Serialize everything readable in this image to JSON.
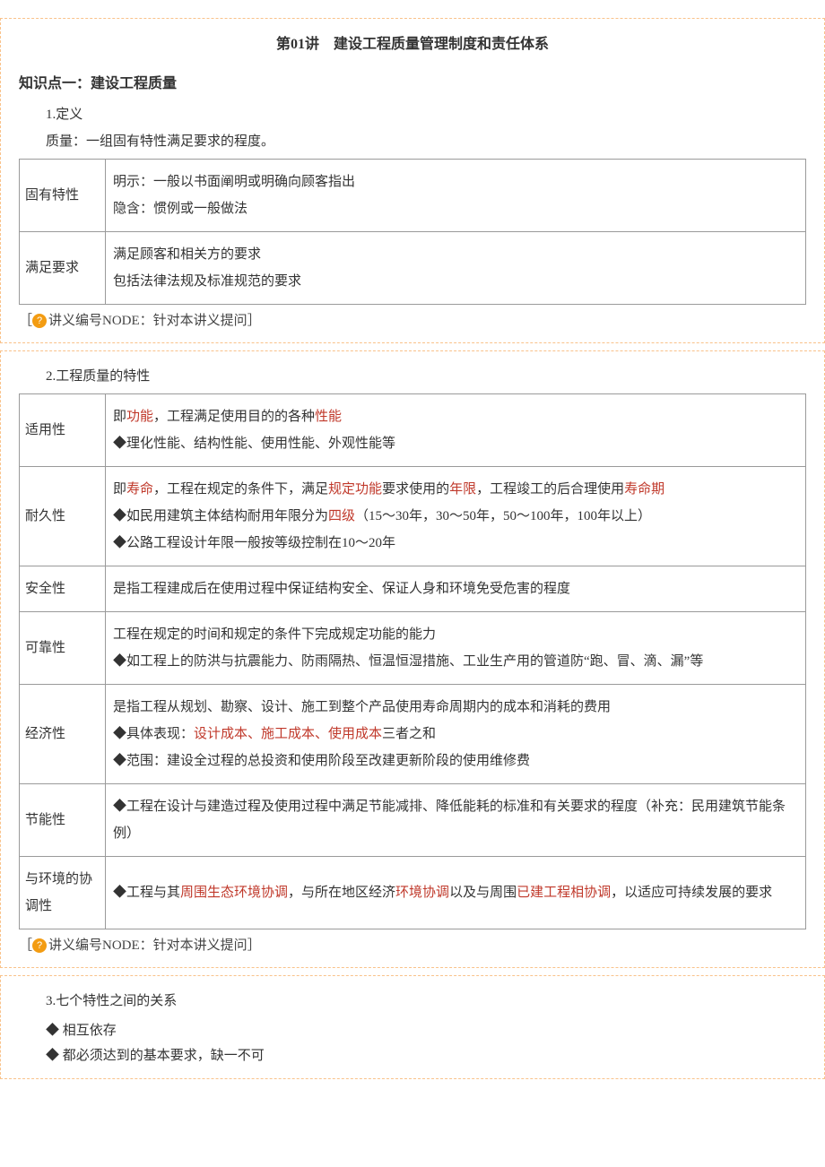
{
  "title": "第01讲　建设工程质量管理制度和责任体系",
  "sections": [
    {
      "kp_heading": "知识点一：建设工程质量",
      "sub_heading": "1.定义",
      "intro": "质量：一组固有特性满足要求的程度。",
      "table_rows": [
        {
          "key": "固有特性",
          "lines": [
            {
              "parts": [
                {
                  "t": "明示：一般以书面阐明或明确向顾客指出"
                }
              ]
            },
            {
              "parts": [
                {
                  "t": "隐含：惯例或一般做法"
                }
              ]
            }
          ]
        },
        {
          "key": "满足要求",
          "lines": [
            {
              "parts": [
                {
                  "t": "满足顾客和相关方的要求"
                }
              ]
            },
            {
              "parts": [
                {
                  "t": "包括法律法规及标准规范的要求"
                }
              ]
            }
          ]
        }
      ],
      "note": "讲义编号NODE：针对本讲义提问"
    },
    {
      "sub_heading": "2.工程质量的特性",
      "table_rows": [
        {
          "key": "适用性",
          "lines": [
            {
              "parts": [
                {
                  "t": "即"
                },
                {
                  "t": "功能",
                  "hl": true
                },
                {
                  "t": "，工程满足使用目的的各种"
                },
                {
                  "t": "性能",
                  "hl": true
                }
              ]
            },
            {
              "parts": [
                {
                  "t": "◆理化性能、结构性能、使用性能、外观性能等"
                }
              ]
            }
          ]
        },
        {
          "key": "耐久性",
          "lines": [
            {
              "parts": [
                {
                  "t": "即"
                },
                {
                  "t": "寿命",
                  "hl": true
                },
                {
                  "t": "，工程在规定的条件下，满足"
                },
                {
                  "t": "规定功能",
                  "hl": true
                },
                {
                  "t": "要求使用的"
                },
                {
                  "t": "年限",
                  "hl": true
                },
                {
                  "t": "，工程竣工的后合理使用"
                },
                {
                  "t": "寿命期",
                  "hl": true
                }
              ]
            },
            {
              "parts": [
                {
                  "t": "◆如民用建筑主体结构耐用年限分为"
                },
                {
                  "t": "四级",
                  "hl": true
                },
                {
                  "t": "（15～30年，30～50年，50～100年，100年以上）"
                }
              ]
            },
            {
              "parts": [
                {
                  "t": "◆公路工程设计年限一般按等级控制在10～20年"
                }
              ]
            }
          ]
        },
        {
          "key": "安全性",
          "lines": [
            {
              "parts": [
                {
                  "t": "是指工程建成后在使用过程中保证结构安全、保证人身和环境免受危害的程度"
                }
              ]
            }
          ]
        },
        {
          "key": "可靠性",
          "lines": [
            {
              "parts": [
                {
                  "t": "工程在规定的时间和规定的条件下完成规定功能的能力"
                }
              ]
            },
            {
              "parts": [
                {
                  "t": "◆如工程上的防洪与抗震能力、防雨隔热、恒温恒湿措施、工业生产用的管道防“跑、冒、滴、漏”等"
                }
              ]
            }
          ]
        },
        {
          "key": "经济性",
          "lines": [
            {
              "parts": [
                {
                  "t": "是指工程从规划、勘察、设计、施工到整个产品使用寿命周期内的成本和消耗的费用"
                }
              ]
            },
            {
              "parts": [
                {
                  "t": "◆具体表现："
                },
                {
                  "t": "设计成本、施工成本、使用成本",
                  "hl": true
                },
                {
                  "t": "三者之和"
                }
              ]
            },
            {
              "parts": [
                {
                  "t": "◆范围：建设全过程的总投资和使用阶段至改建更新阶段的使用维修费"
                }
              ]
            }
          ]
        },
        {
          "key": "节能性",
          "lines": [
            {
              "parts": [
                {
                  "t": "◆工程在设计与建造过程及使用过程中满足节能减排、降低能耗的标准和有关要求的程度（补充：民用建筑节能条例）"
                }
              ]
            }
          ]
        },
        {
          "key": "与环境的协调性",
          "lines": [
            {
              "parts": [
                {
                  "t": "◆工程与其"
                },
                {
                  "t": "周围生态环境协调",
                  "hl": true
                },
                {
                  "t": "，与所在地区经济"
                },
                {
                  "t": "环境协调",
                  "hl": true
                },
                {
                  "t": "以及与周围"
                },
                {
                  "t": "已建工程相协调",
                  "hl": true
                },
                {
                  "t": "，以适应可持续发展的要求"
                }
              ]
            }
          ]
        }
      ],
      "note": "讲义编号NODE：针对本讲义提问"
    },
    {
      "sub_heading": "3.七个特性之间的关系",
      "bullets": [
        "◆ 相互依存",
        "◆ 都必须达到的基本要求，缺一不可"
      ]
    }
  ],
  "style": {
    "highlight_color": "#c0392b",
    "border_color": "#f9c28a",
    "icon_bg": "#f39c12"
  }
}
